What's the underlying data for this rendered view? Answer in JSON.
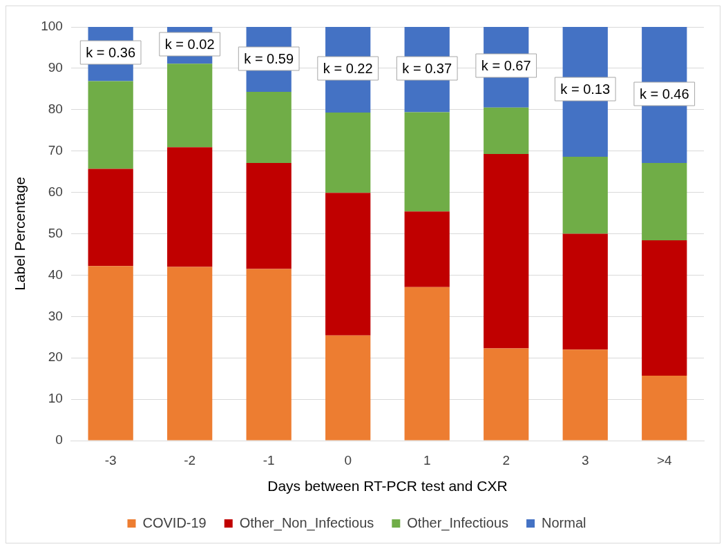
{
  "chart_data": {
    "type": "bar",
    "stacked": true,
    "xlabel": "Days between RT-PCR test and CXR",
    "ylabel": "Label Percentage",
    "categories": [
      "-3",
      "-2",
      "-1",
      "0",
      "1",
      "2",
      "3",
      ">4"
    ],
    "series": [
      {
        "name": "COVID-19",
        "color": "#ed7d31",
        "values": [
          42.2,
          42.0,
          41.5,
          25.4,
          37.1,
          22.3,
          22.0,
          15.7
        ]
      },
      {
        "name": "Other_Non_Infectious",
        "color": "#c00000",
        "values": [
          23.5,
          28.9,
          25.6,
          34.5,
          18.3,
          47.0,
          28.0,
          32.7
        ]
      },
      {
        "name": "Other_Infectious",
        "color": "#70ad47",
        "values": [
          21.2,
          20.2,
          17.2,
          19.4,
          24.0,
          11.2,
          18.6,
          18.7
        ]
      },
      {
        "name": "Normal",
        "color": "#4472c4",
        "values": [
          13.1,
          8.9,
          15.7,
          20.7,
          20.6,
          19.5,
          31.4,
          32.9
        ]
      }
    ],
    "ylim": [
      0,
      100
    ],
    "yticks": [
      0,
      10,
      20,
      30,
      40,
      50,
      60,
      70,
      80,
      90,
      100
    ],
    "grid": "y",
    "legend": "bottom",
    "annotations": [
      "k = 0.36",
      "k = 0.02",
      "k = 0.59",
      "k = 0.22",
      "k = 0.37",
      "k = 0.67",
      "k = 0.13",
      "k = 0.46"
    ]
  }
}
